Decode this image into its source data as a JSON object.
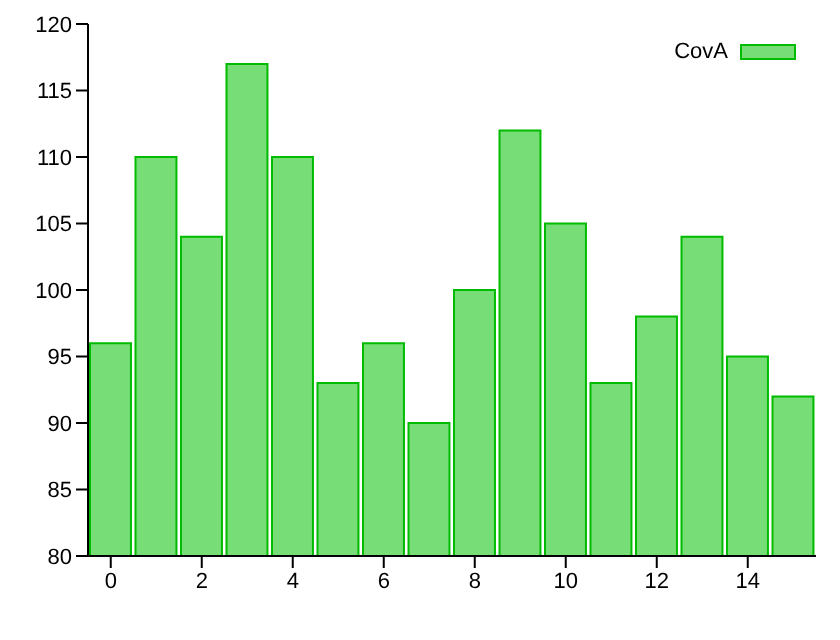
{
  "chart_data": {
    "type": "bar",
    "x": [
      0,
      1,
      2,
      3,
      4,
      5,
      6,
      7,
      8,
      9,
      10,
      11,
      12,
      13,
      14,
      15
    ],
    "series": [
      {
        "name": "CovA",
        "color": "#77dd77",
        "values": [
          96,
          110,
          104,
          117,
          110,
          93,
          96,
          90,
          100,
          112,
          105,
          93,
          98,
          104,
          95,
          92
        ]
      }
    ],
    "xlim": [
      -0.5,
      15.5
    ],
    "xticks": [
      0,
      2,
      4,
      6,
      8,
      10,
      12,
      14
    ],
    "ylim": [
      80,
      120
    ],
    "yticks": [
      80,
      85,
      90,
      95,
      100,
      105,
      110,
      115,
      120
    ],
    "legend": "top right"
  }
}
